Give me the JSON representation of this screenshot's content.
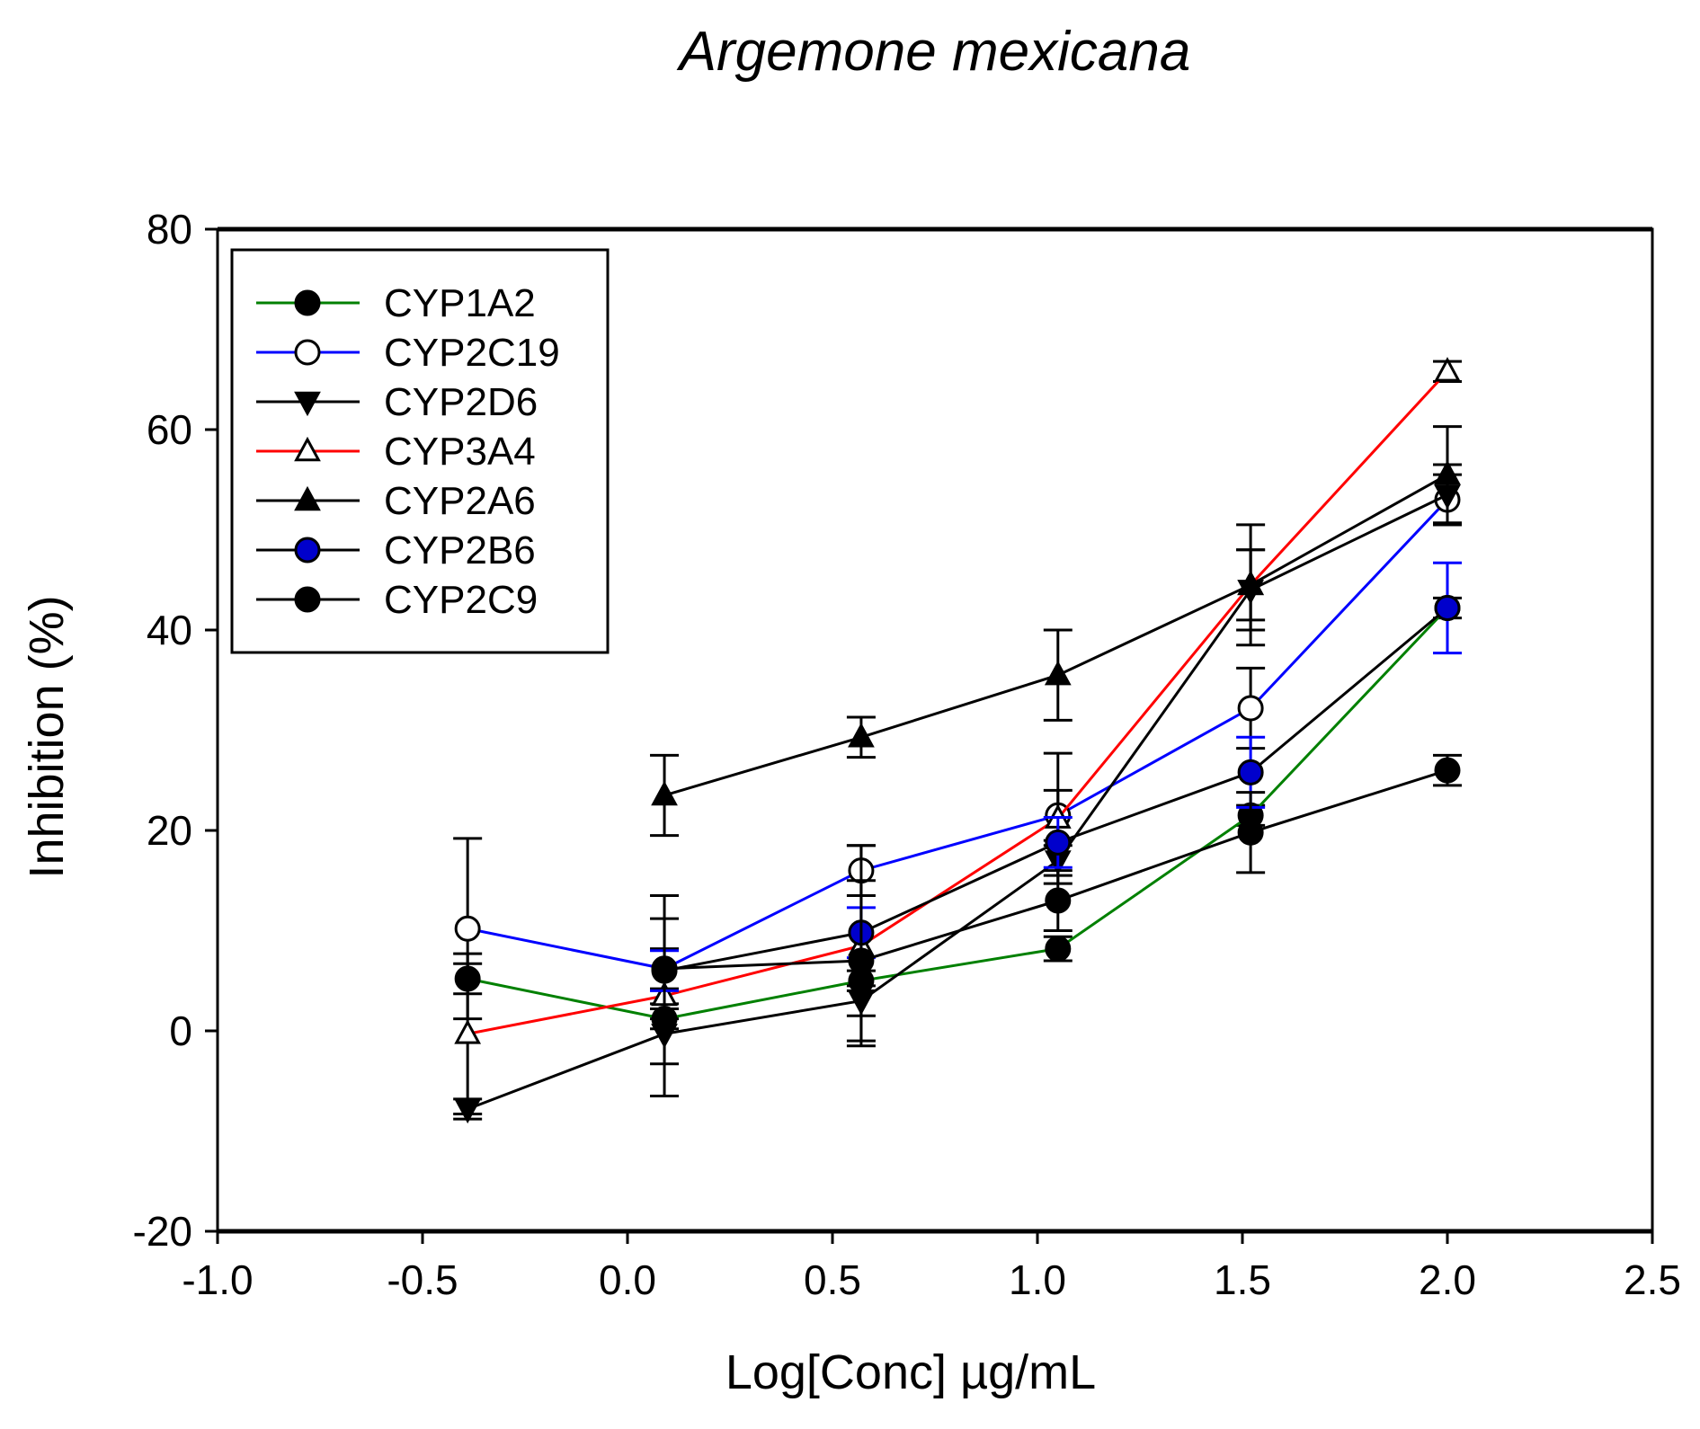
{
  "chart_data": {
    "type": "line",
    "title": "Argemone mexicana",
    "xlabel": "Log[Conc] µg/mL",
    "ylabel": "Inhibition (%)",
    "xlim": [
      -1.0,
      2.5
    ],
    "ylim": [
      -20,
      80
    ],
    "xticks": [
      "-1.0",
      "-0.5",
      "0.0",
      "0.5",
      "1.0",
      "1.5",
      "2.0",
      "2.5"
    ],
    "yticks": [
      "-20",
      "0",
      "20",
      "40",
      "60",
      "80"
    ],
    "legend_position": "top-left",
    "grid": false,
    "x": [
      -0.39,
      0.09,
      0.57,
      1.05,
      1.52,
      2.0
    ],
    "series": [
      {
        "name": "CYP1A2",
        "line_color": "#008000",
        "marker": "circle-filled",
        "marker_fill": "#000000",
        "values": [
          5.2,
          1.2,
          5.0,
          8.2,
          21.5,
          42.2
        ],
        "errors": [
          1.5,
          1.0,
          1.0,
          1.2,
          1.0,
          1.0
        ]
      },
      {
        "name": "CYP2C19",
        "line_color": "#0000FF",
        "marker": "circle-open",
        "marker_fill": "#FFFFFF",
        "values": [
          10.2,
          6.2,
          16.0,
          21.5,
          32.2,
          53.0
        ],
        "errors": [
          9.0,
          2.0,
          2.5,
          2.5,
          4.0,
          2.5
        ]
      },
      {
        "name": "CYP2D6",
        "line_color": "#000000",
        "marker": "triangle-down-filled",
        "marker_fill": "#000000",
        "values": [
          -7.8,
          -0.3,
          3.0,
          17.0,
          44.0,
          53.5
        ],
        "errors": [
          1.0,
          3.0,
          1.5,
          1.5,
          4.0,
          3.0
        ]
      },
      {
        "name": "CYP3A4",
        "line_color": "#FF0000",
        "marker": "triangle-up-open",
        "marker_fill": "#FFFFFF",
        "values": [
          -0.3,
          3.5,
          8.5,
          21.2,
          44.5,
          65.8
        ],
        "errors": [
          8.0,
          10.0,
          10.0,
          6.5,
          3.5,
          1.0
        ]
      },
      {
        "name": "CYP2A6",
        "line_color": "#000000",
        "marker": "triangle-up-filled",
        "marker_fill": "#000000",
        "values": [
          null,
          23.5,
          29.3,
          35.5,
          44.5,
          55.5
        ],
        "errors": [
          null,
          4.0,
          2.0,
          4.5,
          6.0,
          4.8
        ]
      },
      {
        "name": "CYP2B6",
        "line_color": "#000000",
        "marker": "circle-blue",
        "marker_fill": "#0000CC",
        "values": [
          null,
          6.0,
          9.8,
          18.8,
          25.8,
          42.2
        ],
        "errors": [
          null,
          2.0,
          2.5,
          2.5,
          3.5,
          4.5
        ]
      },
      {
        "name": "CYP2C9",
        "line_color": "#000000",
        "marker": "circle-filled",
        "marker_fill": "#000000",
        "values": [
          null,
          6.2,
          7.0,
          13.0,
          19.8,
          26.0
        ],
        "errors": [
          null,
          5.0,
          8.0,
          3.0,
          4.0,
          1.5
        ]
      }
    ]
  }
}
